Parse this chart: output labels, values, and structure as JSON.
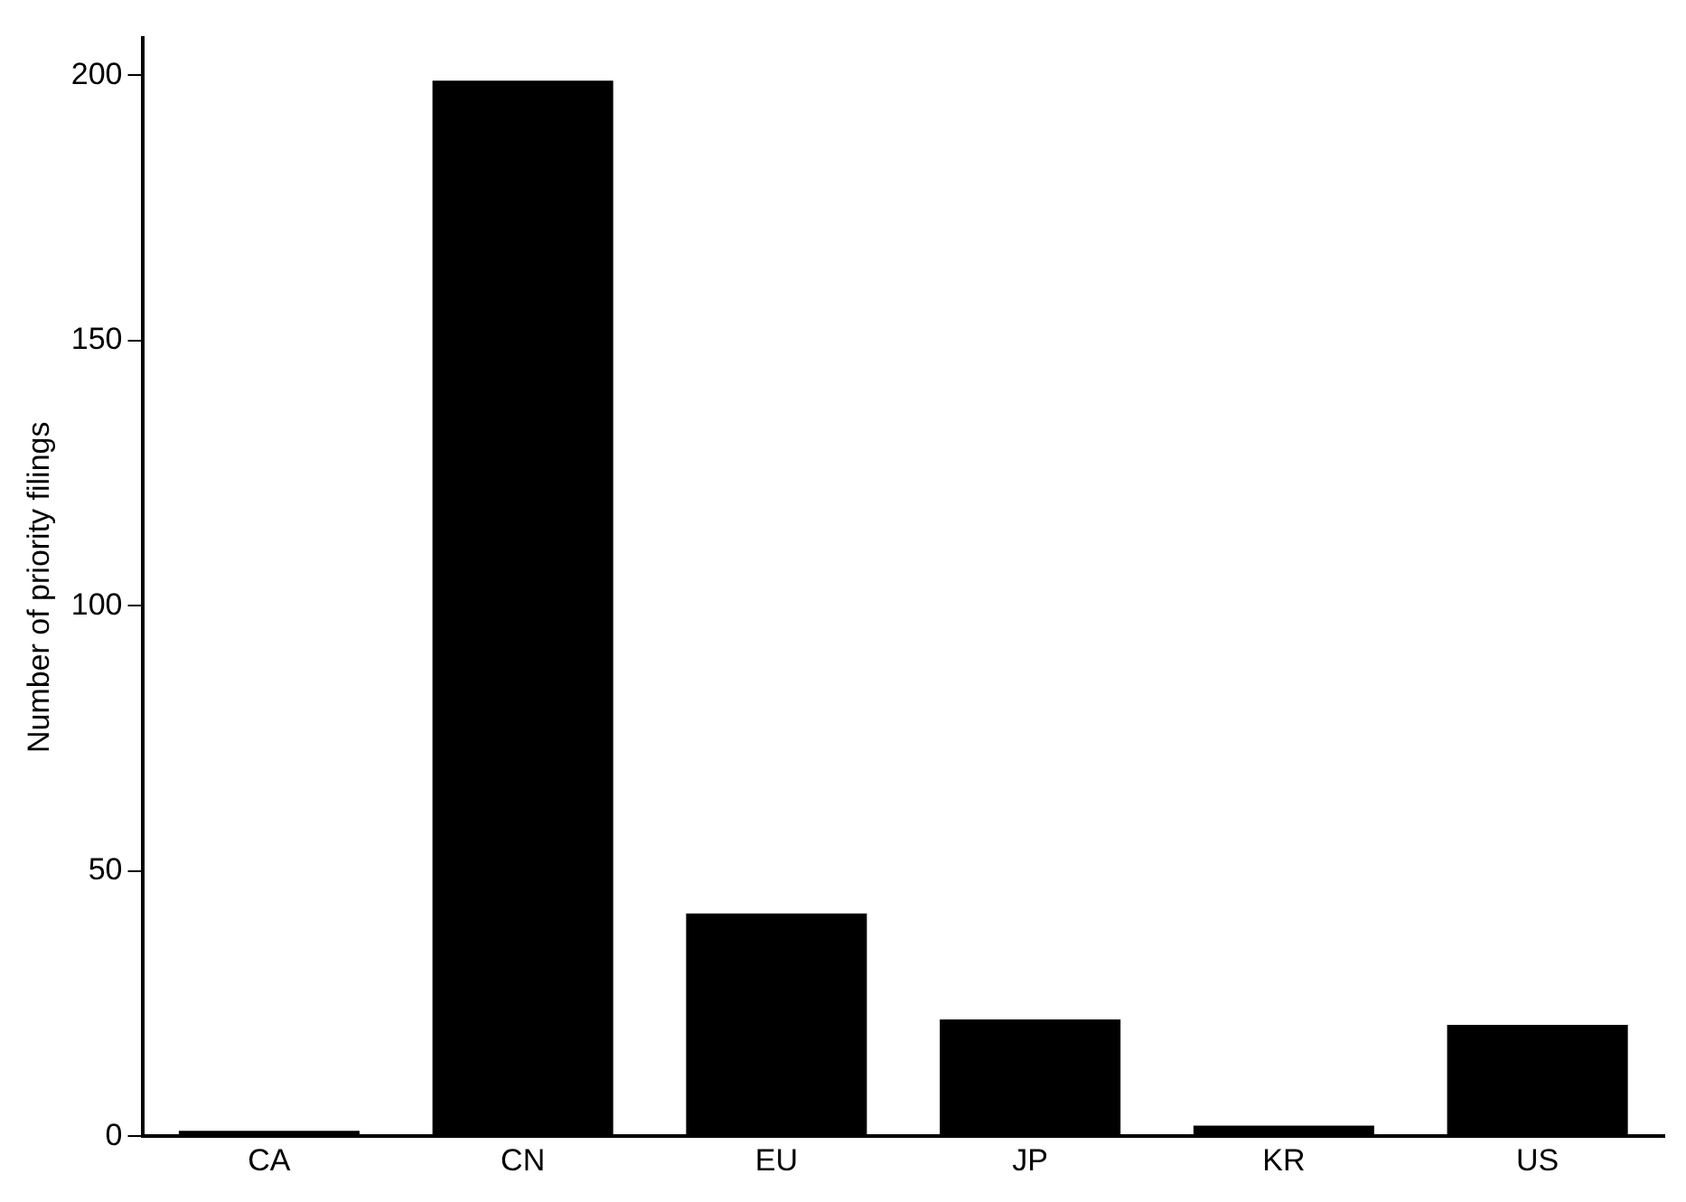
{
  "chart_data": {
    "type": "bar",
    "ylabel": "Number of priority filings",
    "categories": [
      "CA",
      "CN",
      "EU",
      "JP",
      "KR",
      "US"
    ],
    "values": [
      1,
      199,
      42,
      22,
      2,
      21
    ],
    "color": "#000000",
    "ylim": [
      0,
      207
    ],
    "yticks": [
      0,
      50,
      100,
      150,
      200
    ],
    "grid": false,
    "legend": false
  }
}
